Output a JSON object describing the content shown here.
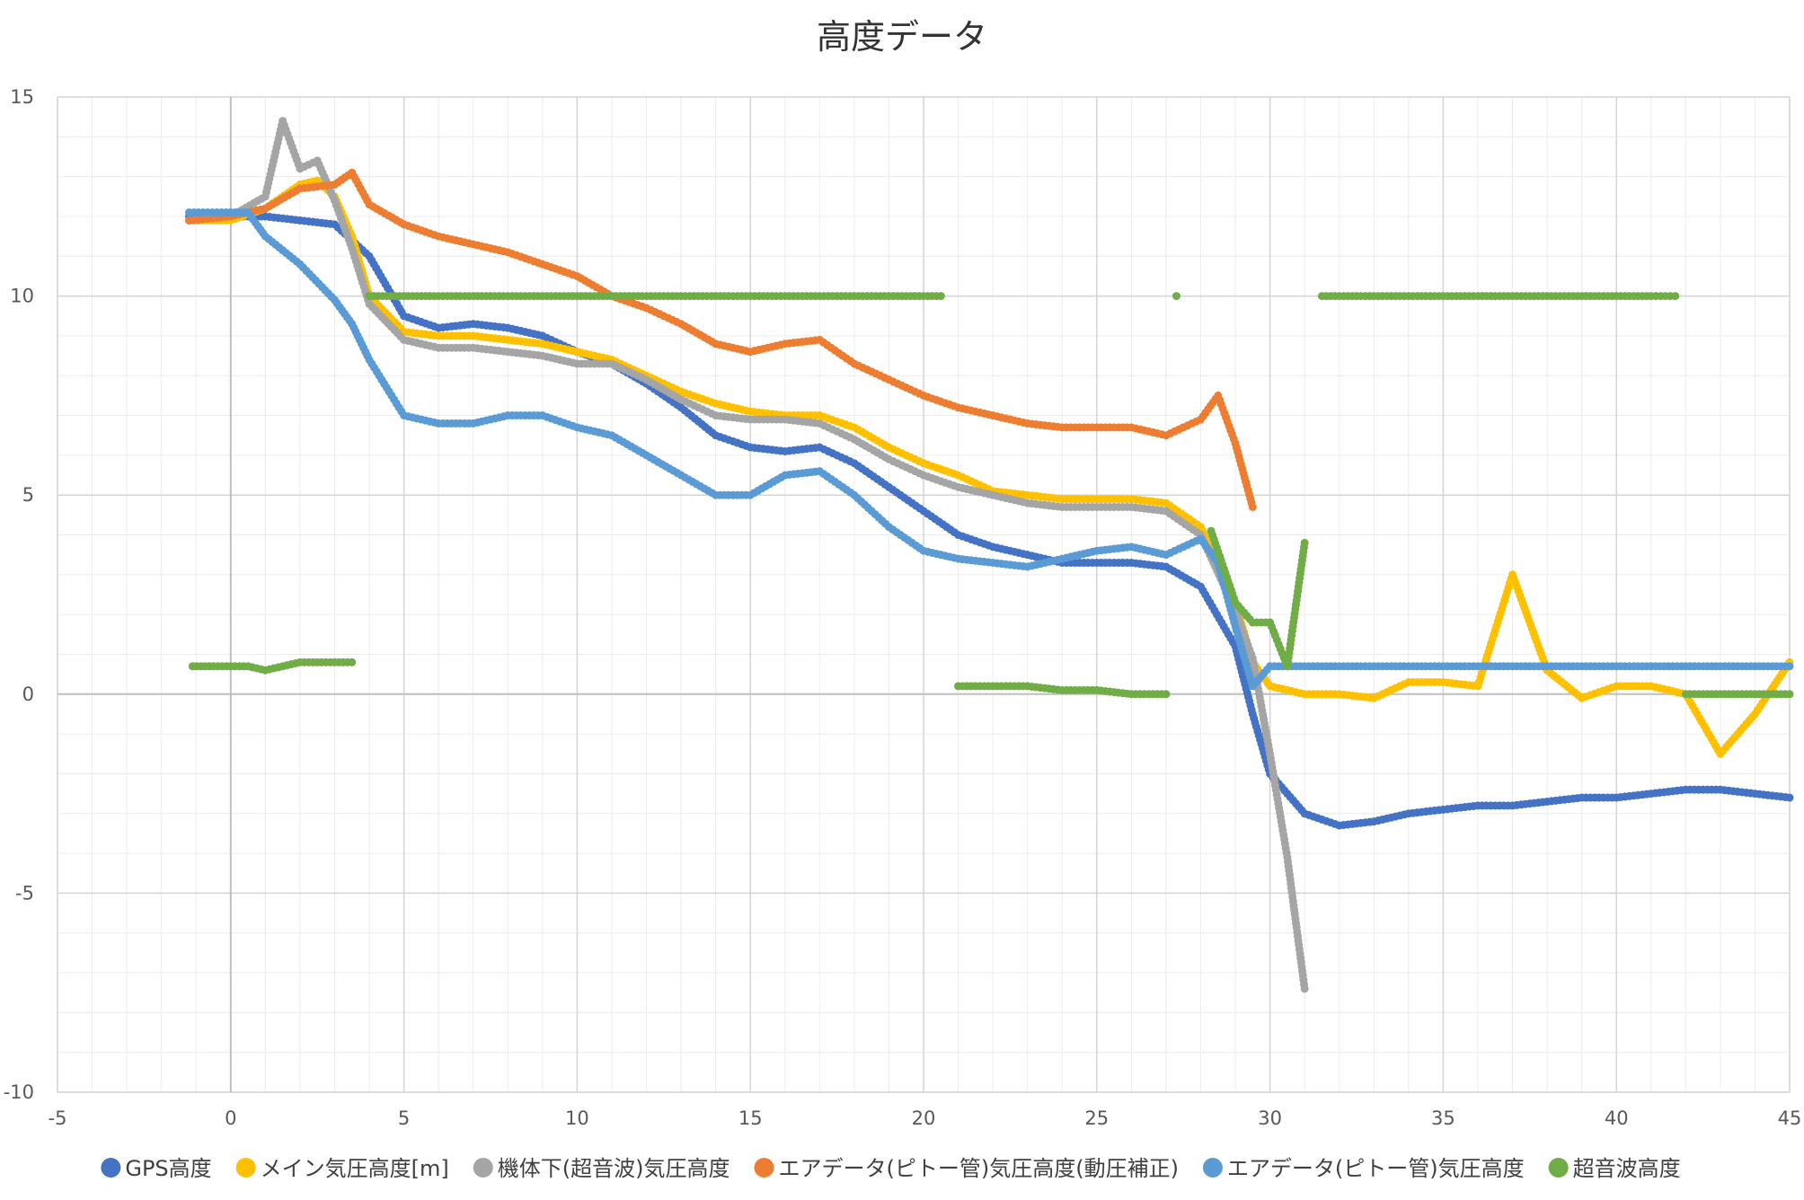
{
  "chart_data": {
    "type": "scatter",
    "title": "高度データ",
    "xlabel": "",
    "ylabel": "",
    "xlim": [
      -5,
      45
    ],
    "ylim": [
      -10,
      15
    ],
    "x_ticks": [
      -5,
      0,
      5,
      10,
      15,
      20,
      25,
      30,
      35,
      40,
      45
    ],
    "y_ticks": [
      -10,
      -5,
      0,
      5,
      10,
      15
    ],
    "x_tick_labels": [
      "-5",
      "0",
      "5",
      "10",
      "15",
      "20",
      "25",
      "30",
      "35",
      "40",
      "45"
    ],
    "y_tick_labels": [
      "-10",
      "-5",
      "0",
      "5",
      "10",
      "15"
    ],
    "x_minor_step": 1,
    "y_minor_step": 1,
    "grid": true,
    "legend_position": "bottom",
    "series": [
      {
        "name": "GPS高度",
        "color": "#4472C4",
        "x": [
          -1.2,
          0,
          1,
          2,
          3,
          4,
          5,
          6,
          7,
          8,
          9,
          10,
          11,
          12,
          13,
          14,
          15,
          16,
          17,
          18,
          19,
          20,
          21,
          22,
          23,
          24,
          25,
          26,
          27,
          28,
          29,
          29.5,
          30,
          31,
          32,
          33,
          34,
          35,
          36,
          37,
          38,
          39,
          40,
          41,
          42,
          43,
          44,
          45
        ],
        "y": [
          12,
          12,
          12,
          11.9,
          11.8,
          11,
          9.5,
          9.2,
          9.3,
          9.2,
          9.0,
          8.6,
          8.3,
          7.8,
          7.2,
          6.5,
          6.2,
          6.1,
          6.2,
          5.8,
          5.2,
          4.6,
          4.0,
          3.7,
          3.5,
          3.3,
          3.3,
          3.3,
          3.2,
          2.7,
          1.2,
          -0.5,
          -2.0,
          -3.0,
          -3.3,
          -3.2,
          -3.0,
          -2.9,
          -2.8,
          -2.8,
          -2.7,
          -2.6,
          -2.6,
          -2.5,
          -2.4,
          -2.4,
          -2.5,
          -2.6
        ]
      },
      {
        "name": "メイン気圧高度[m]",
        "color": "#FFC000",
        "x": [
          -1.2,
          0,
          1,
          2,
          2.5,
          3,
          3.5,
          4,
          5,
          6,
          7,
          8,
          9,
          10,
          11,
          12,
          13,
          14,
          15,
          16,
          17,
          18,
          19,
          20,
          21,
          22,
          23,
          24,
          25,
          26,
          27,
          28,
          29,
          29.5,
          30,
          31,
          32,
          33,
          34,
          35,
          36,
          37,
          38,
          39,
          40,
          41,
          42,
          43,
          44,
          45
        ],
        "y": [
          11.9,
          11.9,
          12.2,
          12.8,
          12.9,
          12.5,
          11.5,
          10.0,
          9.1,
          9.0,
          9.0,
          8.9,
          8.8,
          8.6,
          8.4,
          8.0,
          7.6,
          7.3,
          7.1,
          7.0,
          7.0,
          6.7,
          6.2,
          5.8,
          5.5,
          5.1,
          5.0,
          4.9,
          4.9,
          4.9,
          4.8,
          4.2,
          2.3,
          0.8,
          0.2,
          0,
          0,
          -0.1,
          0.3,
          0.3,
          0.2,
          3.0,
          0.6,
          -0.1,
          0.2,
          0.2,
          0,
          -1.5,
          -0.5,
          0.8
        ]
      },
      {
        "name": "機体下(超音波)気圧高度",
        "color": "#A5A5A5",
        "x": [
          -1.2,
          0,
          1,
          1.5,
          2,
          2.5,
          3,
          3.5,
          4,
          5,
          6,
          7,
          8,
          9,
          10,
          11,
          12,
          13,
          14,
          15,
          16,
          17,
          18,
          19,
          20,
          21,
          22,
          23,
          24,
          25,
          26,
          27,
          28,
          29,
          29.5,
          30,
          30.5,
          31
        ],
        "y": [
          11.9,
          12.0,
          12.5,
          14.4,
          13.2,
          13.4,
          12.4,
          11.2,
          9.8,
          8.9,
          8.7,
          8.7,
          8.6,
          8.5,
          8.3,
          8.3,
          7.9,
          7.4,
          7.0,
          6.9,
          6.9,
          6.8,
          6.4,
          5.9,
          5.5,
          5.2,
          5.0,
          4.8,
          4.7,
          4.7,
          4.7,
          4.6,
          4.0,
          2.1,
          0.9,
          -1.5,
          -4.1,
          -7.4
        ]
      },
      {
        "name": "エアデータ(ピトー管)気圧高度(動圧補正)",
        "color": "#ED7D31",
        "x": [
          -1.2,
          0,
          1,
          2,
          3,
          3.5,
          4,
          5,
          6,
          7,
          8,
          9,
          10,
          11,
          12,
          13,
          14,
          15,
          16,
          17,
          18,
          19,
          20,
          21,
          22,
          23,
          24,
          25,
          26,
          27,
          28,
          28.5,
          29,
          29.5
        ],
        "y": [
          11.9,
          12.0,
          12.2,
          12.7,
          12.8,
          13.1,
          12.3,
          11.8,
          11.5,
          11.3,
          11.1,
          10.8,
          10.5,
          10.0,
          9.7,
          9.3,
          8.8,
          8.6,
          8.8,
          8.9,
          8.3,
          7.9,
          7.5,
          7.2,
          7.0,
          6.8,
          6.7,
          6.7,
          6.7,
          6.5,
          6.9,
          7.5,
          6.3,
          4.7
        ]
      },
      {
        "name": "エアデータ(ピトー管)気圧高度",
        "color": "#5B9BD5",
        "x": [
          -1.2,
          0,
          0.5,
          1,
          2,
          3,
          3.5,
          4,
          4.5,
          5,
          6,
          7,
          8,
          9,
          10,
          11,
          12,
          13,
          14,
          15,
          16,
          17,
          18,
          19,
          20,
          21,
          22,
          23,
          24,
          25,
          26,
          27,
          28,
          28.5,
          29,
          29.5,
          30,
          31,
          32,
          33,
          34,
          35,
          36,
          37,
          38,
          39,
          40,
          41,
          42,
          43,
          44,
          45
        ],
        "y": [
          12.1,
          12.1,
          12.1,
          11.5,
          10.8,
          9.9,
          9.3,
          8.4,
          7.7,
          7.0,
          6.8,
          6.8,
          7.0,
          7.0,
          6.7,
          6.5,
          6.0,
          5.5,
          5.0,
          5.0,
          5.5,
          5.6,
          5.0,
          4.2,
          3.6,
          3.4,
          3.3,
          3.2,
          3.4,
          3.6,
          3.7,
          3.5,
          3.9,
          3.3,
          1.7,
          0.2,
          0.7,
          0.7,
          0.7,
          0.7,
          0.7,
          0.7,
          0.7,
          0.7,
          0.7,
          0.7,
          0.7,
          0.7,
          0.7,
          0.7,
          0.7,
          0.7
        ]
      },
      {
        "name": "超音波高度",
        "color": "#70AD47",
        "x": [
          -1.1,
          -0.5,
          0,
          0.5,
          1,
          1.5,
          2,
          2.5,
          3,
          3.5,
          4,
          5,
          6,
          7,
          8,
          9,
          10,
          11,
          12,
          13,
          14,
          15,
          16,
          17,
          18,
          19,
          20,
          20.5,
          21,
          22,
          23,
          24,
          25,
          26,
          27,
          27.3,
          28.3,
          29,
          29.5,
          30,
          30.5,
          31,
          31.5,
          32,
          33,
          34,
          35,
          36,
          37,
          38,
          39,
          40,
          41,
          41.7,
          42,
          43,
          44,
          45
        ],
        "y": [
          0.7,
          0.7,
          0.7,
          0.7,
          0.6,
          0.7,
          0.8,
          0.8,
          0.8,
          0.8,
          10,
          10,
          10,
          10,
          10,
          10,
          10,
          10,
          10,
          10,
          10,
          10,
          10,
          10,
          10,
          10,
          10,
          10,
          0.2,
          0.2,
          0.2,
          0.1,
          0.1,
          0.0,
          0.0,
          10,
          4.1,
          2.3,
          1.8,
          1.8,
          0.7,
          3.8,
          10,
          10,
          10,
          10,
          10,
          10,
          10,
          10,
          10,
          10,
          10,
          10,
          0.0,
          0.0,
          0.0,
          0.0
        ]
      }
    ]
  }
}
